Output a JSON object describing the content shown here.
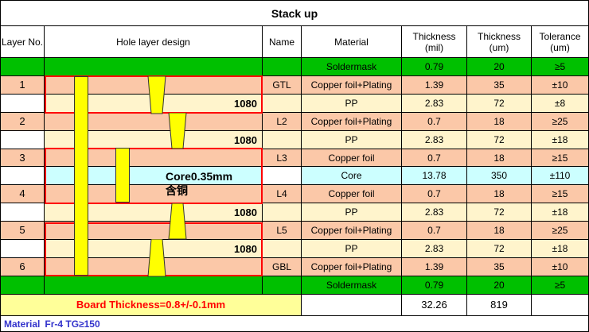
{
  "title": "Stack up",
  "headers": {
    "layer_no": "Layer No.",
    "hole_design": "Hole layer design",
    "name": "Name",
    "material": "Material",
    "thickness_mil": "Thickness\n(mil)",
    "thickness_um": "Thickness\n(um)",
    "tolerance_um": "Tolerance\n(um)"
  },
  "rows": [
    {
      "layer": "",
      "name": "",
      "material": "Soldermask",
      "mil": "0.79",
      "um": "20",
      "tol": "≥5",
      "tone": "green"
    },
    {
      "layer": "1",
      "name": "GTL",
      "material": "Copper foil+Plating",
      "mil": "1.39",
      "um": "35",
      "tol": "±10",
      "tone": "orange"
    },
    {
      "layer": "",
      "name": "",
      "material": "PP",
      "mil": "2.83",
      "um": "72",
      "tol": "±8",
      "tone": "cream",
      "note": "1080"
    },
    {
      "layer": "2",
      "name": "L2",
      "material": "Copper foil+Plating",
      "mil": "0.7",
      "um": "18",
      "tol": "≥25",
      "tone": "orange"
    },
    {
      "layer": "",
      "name": "",
      "material": "PP",
      "mil": "2.83",
      "um": "72",
      "tol": "±18",
      "tone": "cream",
      "note": "1080"
    },
    {
      "layer": "3",
      "name": "L3",
      "material": "Copper foil",
      "mil": "0.7",
      "um": "18",
      "tol": "≥15",
      "tone": "orange"
    },
    {
      "layer": "",
      "name": "",
      "material": "Core",
      "mil": "13.78",
      "um": "350",
      "tol": "±110",
      "tone": "cyan",
      "note": "Core0.35mm含铜"
    },
    {
      "layer": "4",
      "name": "L4",
      "material": "Copper foil",
      "mil": "0.7",
      "um": "18",
      "tol": "≥15",
      "tone": "orange"
    },
    {
      "layer": "",
      "name": "",
      "material": "PP",
      "mil": "2.83",
      "um": "72",
      "tol": "±18",
      "tone": "cream",
      "note": "1080"
    },
    {
      "layer": "5",
      "name": "L5",
      "material": "Copper foil+Plating",
      "mil": "0.7",
      "um": "18",
      "tol": "≥25",
      "tone": "orange"
    },
    {
      "layer": "",
      "name": "",
      "material": "PP",
      "mil": "2.83",
      "um": "72",
      "tol": "±18",
      "tone": "cream",
      "note": "1080"
    },
    {
      "layer": "6",
      "name": "GBL",
      "material": "Copper foil+Plating",
      "mil": "1.39",
      "um": "35",
      "tol": "±10",
      "tone": "orange"
    },
    {
      "layer": "",
      "name": "",
      "material": "Soldermask",
      "mil": "0.79",
      "um": "20",
      "tol": "≥5",
      "tone": "green"
    }
  ],
  "footer": {
    "board_thickness": "Board Thickness=0.8+/-0.1mm",
    "total_mil": "32.26",
    "total_um": "819"
  },
  "material_line": {
    "label": "Material",
    "value": "Fr-4  TG≥150"
  }
}
